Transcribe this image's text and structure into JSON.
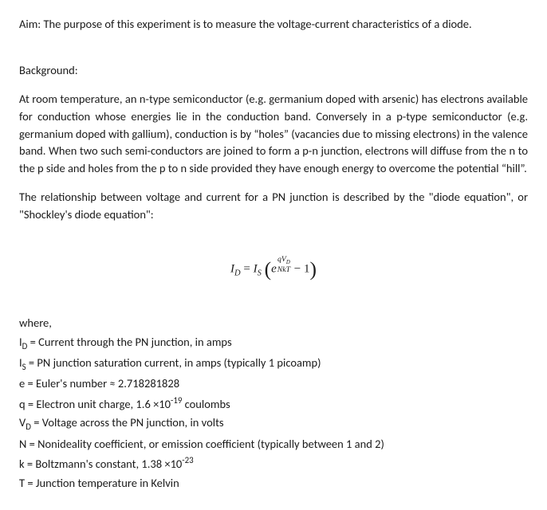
{
  "aim": "Aim: The purpose of this experiment is to measure the voltage-current characteristics of a diode.",
  "background_head": "Background:",
  "background_p1": "At room temperature, an n-type semiconductor (e.g. germanium doped with arsenic) has electrons available for conduction whose energies lie in the conduction band. Conversely in a p-type semiconductor (e.g. germanium doped with gallium), conduction is by “holes” (vacancies due to missing electrons) in the valence band. When two such semi-conductors are joined to form a p-n junction, electrons will diffuse from the n to the p side and holes from the p to n side provided they have enough energy to overcome the potential “hill”.",
  "background_p2": "The relationship between voltage and current for a PN junction is described by the \"diode equation\", or \"Shockley's diode equation\":",
  "eq": {
    "lhs_I": "I",
    "lhs_Dsub": "D",
    "eqsign": " = ",
    "Is_I": "I",
    "Is_sub": "S",
    "openp": "(",
    "e": "e",
    "frac_num": "qV",
    "frac_num_sub": "D",
    "frac_den": "NkT",
    "minus1": " − 1",
    "closep": ")"
  },
  "where": "where,",
  "defs": {
    "d1a": "I",
    "d1b": "D",
    "d1c": " = Current through the PN junction, in amps",
    "d2a": "I",
    "d2b": "S",
    "d2c": " = PN junction saturation current, in amps (typically 1 picoamp)",
    "d3": "e = Euler's number ≈ 2.718281828",
    "d4a": "q = Electron unit charge, 1.6 ×10",
    "d4b": "-19",
    "d4c": " coulombs",
    "d5a": "V",
    "d5b": "D",
    "d5c": " = Voltage across the PN junction, in volts",
    "d6": "N = Nonideality coefficient, or emission coefficient (typically between 1 and 2)",
    "d7a": "k = Boltzmann's constant, 1.38 ×10",
    "d7b": "-23",
    "d8": "T = Junction temperature in Kelvin"
  }
}
